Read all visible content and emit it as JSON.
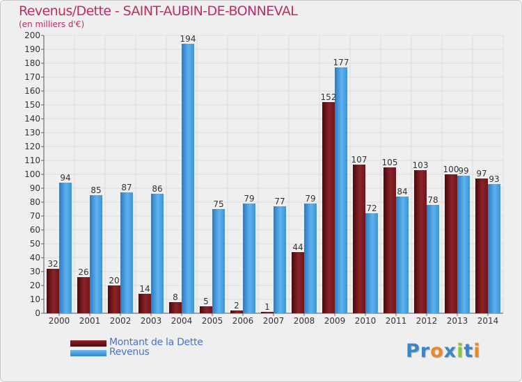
{
  "title": "Revenus/Dette - SAINT-AUBIN-DE-BONNEVAL",
  "subtitle": "(en milliers d'€)",
  "chart_data": {
    "type": "bar",
    "title": "Revenus/Dette - SAINT-AUBIN-DE-BONNEVAL",
    "ylabel": "(en milliers d'€)",
    "xlabel": "",
    "ylim": [
      0,
      200
    ],
    "ytick_step": 10,
    "grid": true,
    "categories": [
      "2000",
      "2001",
      "2002",
      "2003",
      "2004",
      "2005",
      "2006",
      "2007",
      "2008",
      "2009",
      "2010",
      "2011",
      "2012",
      "2013",
      "2014"
    ],
    "series": [
      {
        "name": "Montant de la Dette",
        "color": "#7a1a1f",
        "values": [
          32,
          26,
          20,
          14,
          8,
          5,
          2,
          1,
          44,
          152,
          107,
          105,
          103,
          100,
          97
        ]
      },
      {
        "name": "Revenus",
        "color": "#4a9fe0",
        "values": [
          94,
          85,
          87,
          86,
          194,
          75,
          79,
          77,
          79,
          177,
          72,
          84,
          78,
          99,
          93
        ]
      }
    ]
  },
  "legend": {
    "items": [
      {
        "label": "Montant de la Dette",
        "color": "#6b1016"
      },
      {
        "label": "Revenus",
        "color": "#4a9fe0"
      }
    ]
  },
  "logo": {
    "letters": [
      {
        "ch": "P",
        "color": "#3a86c8"
      },
      {
        "ch": "r",
        "color": "#3a86c8"
      },
      {
        "ch": "o",
        "color": "#e8892a"
      },
      {
        "ch": "x",
        "color": "#3a86c8"
      },
      {
        "ch": "i",
        "color": "#8cc63f"
      },
      {
        "ch": "t",
        "color": "#3a86c8"
      },
      {
        "ch": "i",
        "color": "#e8892a"
      }
    ]
  }
}
